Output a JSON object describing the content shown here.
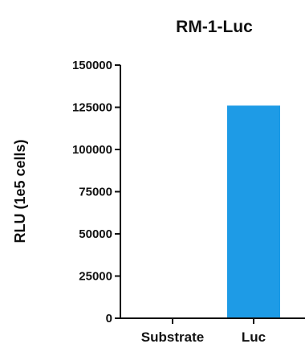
{
  "chart_data": {
    "type": "bar",
    "title": "RM-1-Luc",
    "ylabel": "RLU (1e5 cells)",
    "xlabel": "",
    "categories": [
      "Substrate",
      "Luc"
    ],
    "values": [
      0,
      126000
    ],
    "ylim": [
      0,
      150000
    ],
    "yticks": [
      0,
      25000,
      50000,
      75000,
      100000,
      125000,
      150000
    ],
    "ytick_labels": [
      "0",
      "25000",
      "50000",
      "75000",
      "100000",
      "125000",
      "150000"
    ],
    "bar_colors": [
      "#1E9BE6",
      "#1E9BE6"
    ],
    "grid": false,
    "legend": "none"
  }
}
